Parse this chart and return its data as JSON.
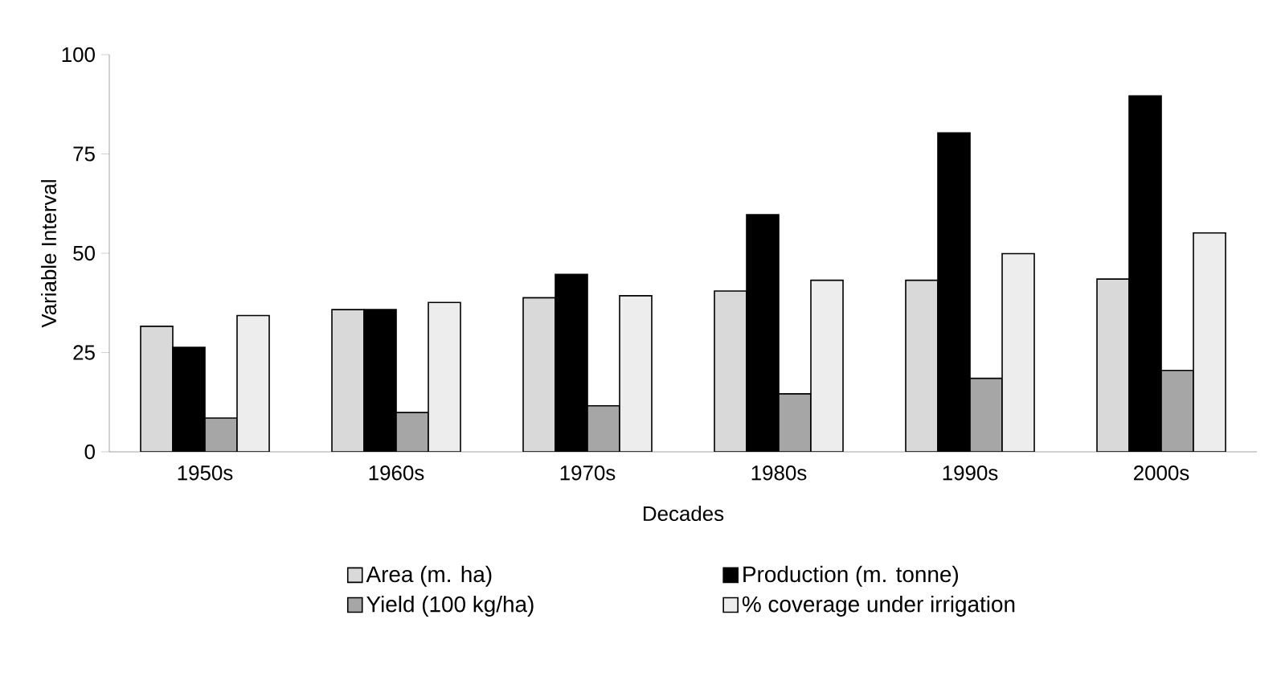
{
  "chart_data": {
    "type": "bar",
    "xlabel": "Decades",
    "ylabel": "Variable Interval",
    "categories": [
      "1950s",
      "1960s",
      "1970s",
      "1980s",
      "1990s",
      "2000s"
    ],
    "series": [
      {
        "name": "Area (m. ha)",
        "color": "#d9d9d9",
        "values": [
          31.6,
          35.8,
          38.8,
          40.5,
          43.2,
          43.5
        ]
      },
      {
        "name": "Production (m. tonne)",
        "color": "#000000",
        "values": [
          26.3,
          35.8,
          44.7,
          59.7,
          80.3,
          89.6
        ]
      },
      {
        "name": "Yield (100 kg/ha)",
        "color": "#a6a6a6",
        "values": [
          8.5,
          9.9,
          11.6,
          14.6,
          18.5,
          20.5
        ]
      },
      {
        "name": "% coverage under irrigation",
        "color": "#ededed",
        "values": [
          34.3,
          37.6,
          39.3,
          43.2,
          49.9,
          55.1
        ]
      }
    ],
    "ylim": [
      0,
      100
    ],
    "yticks": [
      0,
      25,
      50,
      75,
      100
    ],
    "grid": false,
    "legend": "bottom"
  }
}
